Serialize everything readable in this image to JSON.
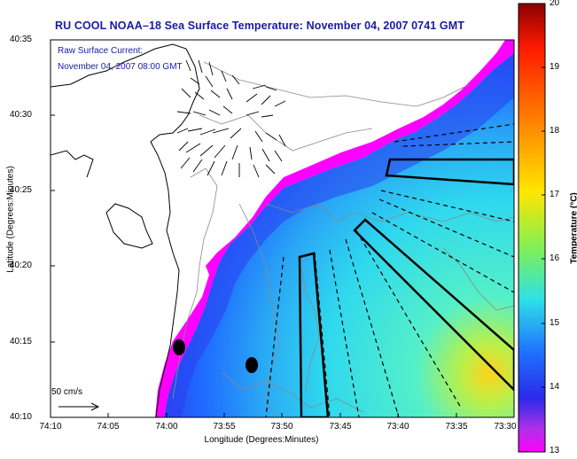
{
  "title": "RU COOL  NOAA–18  Sea Surface Temperature:  November 04, 2007 0741 GMT",
  "current_legend": {
    "line1": "Raw Surface Current:",
    "line2": "November 04, 2007 08:00 GMT"
  },
  "scale_label": "50 cm/s",
  "axes": {
    "xlabel": "Longitude (Degrees:Minutes)",
    "ylabel": "Latitude (Degrees:Minutes)",
    "xticks": [
      "74:10",
      "74:05",
      "74:00",
      "73:55",
      "73:50",
      "73:45",
      "73:40",
      "73:35",
      "73:30"
    ],
    "yticks": [
      "40:35",
      "40:30",
      "40:25",
      "40:20",
      "40:15",
      "40:10"
    ]
  },
  "colorbar": {
    "label": "Temperature (°C)",
    "ticks": [
      "20",
      "19",
      "18",
      "17",
      "16",
      "15",
      "14",
      "13"
    ],
    "range": [
      13,
      20
    ]
  },
  "colors": {
    "title_text": "#1a1aa6",
    "cold_edge": "#ff00ff",
    "sst_blue": "#1f6bff",
    "sst_cyan": "#3fe6f0",
    "sst_warm": "#ffd21a"
  }
}
